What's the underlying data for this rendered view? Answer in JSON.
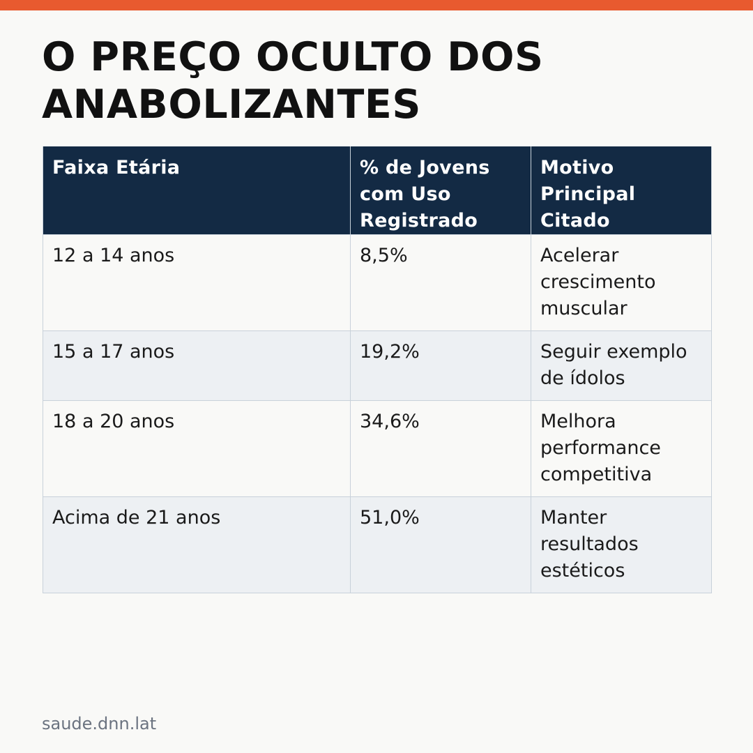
{
  "colors": {
    "accent_bar": "#e85a2f",
    "header_background": "#132a44",
    "row_alt_background": "#edf0f3",
    "background": "#f9f9f7"
  },
  "title": "O PREÇO OCULTO DOS ANABOLIZANTES",
  "table": {
    "headers": [
      "Faixa Etária",
      "% de Jovens com Uso Registrado",
      "Motivo Principal Citado"
    ],
    "rows": [
      [
        "12 a 14 anos",
        "8,5%",
        "Acelerar crescimento muscular"
      ],
      [
        "15 a 17 anos",
        "19,2%",
        "Seguir exemplo de ídolos"
      ],
      [
        "18 a 20 anos",
        "34,6%",
        "Melhora performance competitiva"
      ],
      [
        "Acima de 21 anos",
        "51,0%",
        "Manter resultados estéticos"
      ]
    ]
  },
  "footer": "saude.dnn.lat"
}
